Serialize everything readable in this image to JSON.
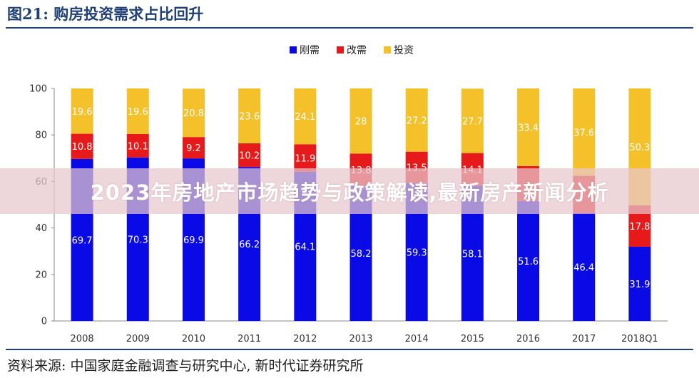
{
  "header": {
    "title": "图21:   购房投资需求占比回升"
  },
  "footer": {
    "source": "资料来源:  中国家庭金融调查与研究中心, 新时代证券研究所"
  },
  "overlay": {
    "banner": "2023年房地产市场趋势与政策解读,最新房产新闻分析"
  },
  "chart_data": {
    "type": "bar",
    "stacked": true,
    "title": "",
    "xlabel": "",
    "ylabel": "",
    "categories": [
      "2008",
      "2009",
      "2010",
      "2011",
      "2012",
      "2013",
      "2014",
      "2015",
      "2016",
      "2017",
      "2018Q1"
    ],
    "ylim": [
      0,
      100
    ],
    "yticks": [
      0,
      20,
      40,
      60,
      80,
      100
    ],
    "legend_position": "top-center",
    "series": [
      {
        "name": "刚需",
        "color": "#0a0ae6",
        "values": [
          69.7,
          70.3,
          69.9,
          66.2,
          64.1,
          58.2,
          59.3,
          58.1,
          51.6,
          46.4,
          31.9
        ]
      },
      {
        "name": "改需",
        "color": "#e61a1a",
        "values": [
          10.8,
          10.1,
          9.2,
          10.2,
          11.9,
          13.8,
          13.5,
          14.1,
          15.0,
          16.0,
          17.8
        ]
      },
      {
        "name": "投资",
        "color": "#f5c12b",
        "values": [
          19.6,
          19.6,
          20.8,
          23.6,
          24.1,
          28,
          27.2,
          27.7,
          33.4,
          37.6,
          50.3
        ]
      }
    ],
    "labels": [
      [
        "69.7",
        "70.3",
        "69.9",
        "66.2",
        "64.1",
        "58.2",
        "59.3",
        "58.1",
        "51.6",
        "46.4",
        "31.9"
      ],
      [
        "10.8",
        "10.1",
        "9.2",
        "10.2",
        "11.9",
        "13.8",
        "13.5",
        "14.1",
        "",
        "",
        "17.8"
      ],
      [
        "19.6",
        "19.6",
        "20.8",
        "23.6",
        "24.1",
        "28",
        "27.2",
        "27.7",
        "33.4",
        "37.6",
        "50.3"
      ]
    ]
  }
}
